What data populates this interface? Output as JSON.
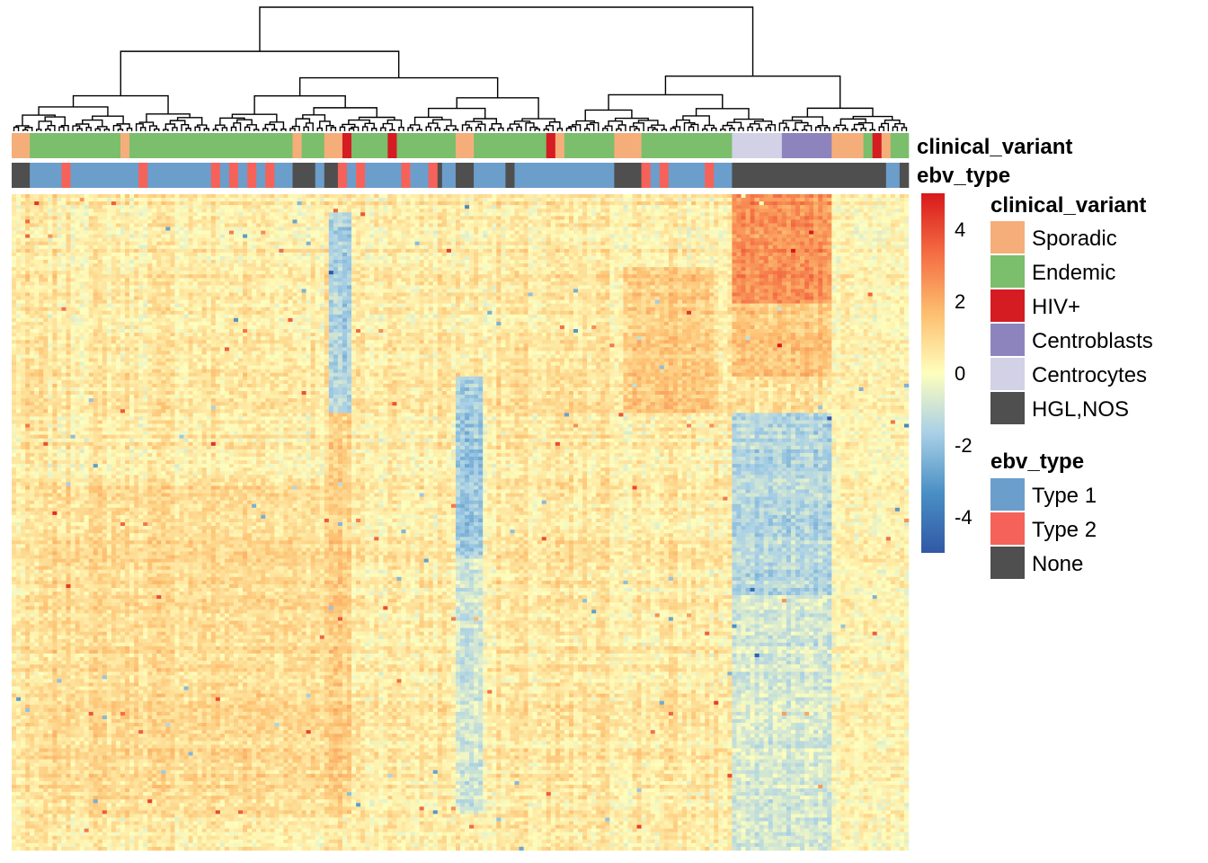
{
  "chart_data": {
    "type": "heatmap",
    "title": "",
    "columns": 198,
    "rows": 180,
    "clustering": "hierarchical (columns)",
    "annotation_tracks": [
      {
        "name": "clinical_variant"
      },
      {
        "name": "ebv_type"
      }
    ],
    "color_scale": {
      "ticks": [
        4,
        2,
        0,
        -2,
        -4
      ],
      "range": [
        -5,
        5
      ],
      "palette": [
        "#3158a6",
        "#4a8fc4",
        "#a9d0e6",
        "#fefebd",
        "#fdbe6f",
        "#f46d43",
        "#d7191c"
      ]
    },
    "legends": [
      {
        "title": "clinical_variant",
        "items": [
          {
            "label": "Sporadic",
            "color": "#f5ae7a"
          },
          {
            "label": "Endemic",
            "color": "#7bbe6c"
          },
          {
            "label": "HIV+",
            "color": "#d51c22"
          },
          {
            "label": "Centroblasts",
            "color": "#8e84bd"
          },
          {
            "label": "Centrocytes",
            "color": "#d2d1e6"
          },
          {
            "label": "HGL,NOS",
            "color": "#4f4f4f"
          }
        ]
      },
      {
        "title": "ebv_type",
        "items": [
          {
            "label": "Type 1",
            "color": "#6c9ecb"
          },
          {
            "label": "Type 2",
            "color": "#f5625a"
          },
          {
            "label": "None",
            "color": "#4f4f4f"
          }
        ]
      }
    ],
    "clinical_variant_segments": [
      [
        "Sporadic",
        0,
        4
      ],
      [
        "Endemic",
        4,
        24
      ],
      [
        "Sporadic",
        24,
        26
      ],
      [
        "Endemic",
        26,
        62
      ],
      [
        "Sporadic",
        62,
        64
      ],
      [
        "Endemic",
        64,
        69
      ],
      [
        "Sporadic",
        69,
        73
      ],
      [
        "HIV+",
        73,
        75
      ],
      [
        "Endemic",
        75,
        83
      ],
      [
        "HIV+",
        83,
        85
      ],
      [
        "Endemic",
        85,
        98
      ],
      [
        "Sporadic",
        98,
        102
      ],
      [
        "Endemic",
        102,
        118
      ],
      [
        "HIV+",
        118,
        120
      ],
      [
        "Sporadic",
        120,
        122
      ],
      [
        "Endemic",
        122,
        133
      ],
      [
        "Sporadic",
        133,
        139
      ],
      [
        "Endemic",
        139,
        159
      ],
      [
        "Centrocytes",
        159,
        170
      ],
      [
        "Centroblasts",
        170,
        181
      ],
      [
        "Sporadic",
        181,
        188
      ],
      [
        "Endemic",
        188,
        190
      ],
      [
        "HIV+",
        190,
        192
      ],
      [
        "Sporadic",
        192,
        194
      ],
      [
        "Endemic",
        194,
        198
      ]
    ],
    "ebv_type_segments": [
      [
        "None",
        0,
        4
      ],
      [
        "Type 1",
        4,
        11
      ],
      [
        "Type 2",
        11,
        13
      ],
      [
        "Type 1",
        13,
        28
      ],
      [
        "Type 2",
        28,
        30
      ],
      [
        "Type 1",
        30,
        44
      ],
      [
        "Type 2",
        44,
        46
      ],
      [
        "Type 1",
        46,
        48
      ],
      [
        "Type 2",
        48,
        50
      ],
      [
        "Type 1",
        50,
        52
      ],
      [
        "Type 2",
        52,
        54
      ],
      [
        "Type 1",
        54,
        56
      ],
      [
        "Type 2",
        56,
        58
      ],
      [
        "Type 1",
        58,
        62
      ],
      [
        "None",
        62,
        67
      ],
      [
        "Type 1",
        67,
        69
      ],
      [
        "None",
        69,
        72
      ],
      [
        "Type 2",
        72,
        74
      ],
      [
        "Type 1",
        74,
        76
      ],
      [
        "Type 2",
        76,
        78
      ],
      [
        "Type 1",
        78,
        86
      ],
      [
        "Type 2",
        86,
        88
      ],
      [
        "Type 1",
        88,
        92
      ],
      [
        "Type 2",
        92,
        94
      ],
      [
        "None",
        94,
        95
      ],
      [
        "Type 1",
        95,
        98
      ],
      [
        "None",
        98,
        102
      ],
      [
        "Type 1",
        102,
        109
      ],
      [
        "None",
        109,
        111
      ],
      [
        "Type 1",
        111,
        133
      ],
      [
        "None",
        133,
        139
      ],
      [
        "Type 2",
        139,
        141
      ],
      [
        "Type 1",
        141,
        143
      ],
      [
        "Type 2",
        143,
        145
      ],
      [
        "Type 1",
        145,
        153
      ],
      [
        "Type 2",
        153,
        155
      ],
      [
        "Type 1",
        155,
        159
      ],
      [
        "None",
        159,
        193
      ],
      [
        "Type 1",
        193,
        196
      ],
      [
        "None",
        196,
        198
      ]
    ],
    "heatmap_blocks": [
      {
        "cols": [
          159,
          181
        ],
        "rows": [
          0,
          30
        ],
        "value": 2.6
      },
      {
        "cols": [
          159,
          181
        ],
        "rows": [
          30,
          50
        ],
        "value": 1.4
      },
      {
        "cols": [
          159,
          181
        ],
        "rows": [
          60,
          110
        ],
        "value": -1.4
      },
      {
        "cols": [
          159,
          181
        ],
        "rows": [
          110,
          180
        ],
        "value": -0.8
      },
      {
        "cols": [
          98,
          104
        ],
        "rows": [
          50,
          100
        ],
        "value": -1.8
      },
      {
        "cols": [
          98,
          104
        ],
        "rows": [
          100,
          170
        ],
        "value": -0.9
      },
      {
        "cols": [
          70,
          75
        ],
        "rows": [
          5,
          60
        ],
        "value": -1.6
      },
      {
        "cols": [
          70,
          75
        ],
        "rows": [
          60,
          170
        ],
        "value": 1.2
      },
      {
        "cols": [
          135,
          155
        ],
        "rows": [
          20,
          60
        ],
        "value": 1.3
      },
      {
        "cols": [
          8,
          70
        ],
        "rows": [
          80,
          170
        ],
        "value": 0.9
      },
      {
        "cols": [
          181,
          198
        ],
        "rows": [
          0,
          180
        ],
        "value": 0.3
      }
    ]
  }
}
